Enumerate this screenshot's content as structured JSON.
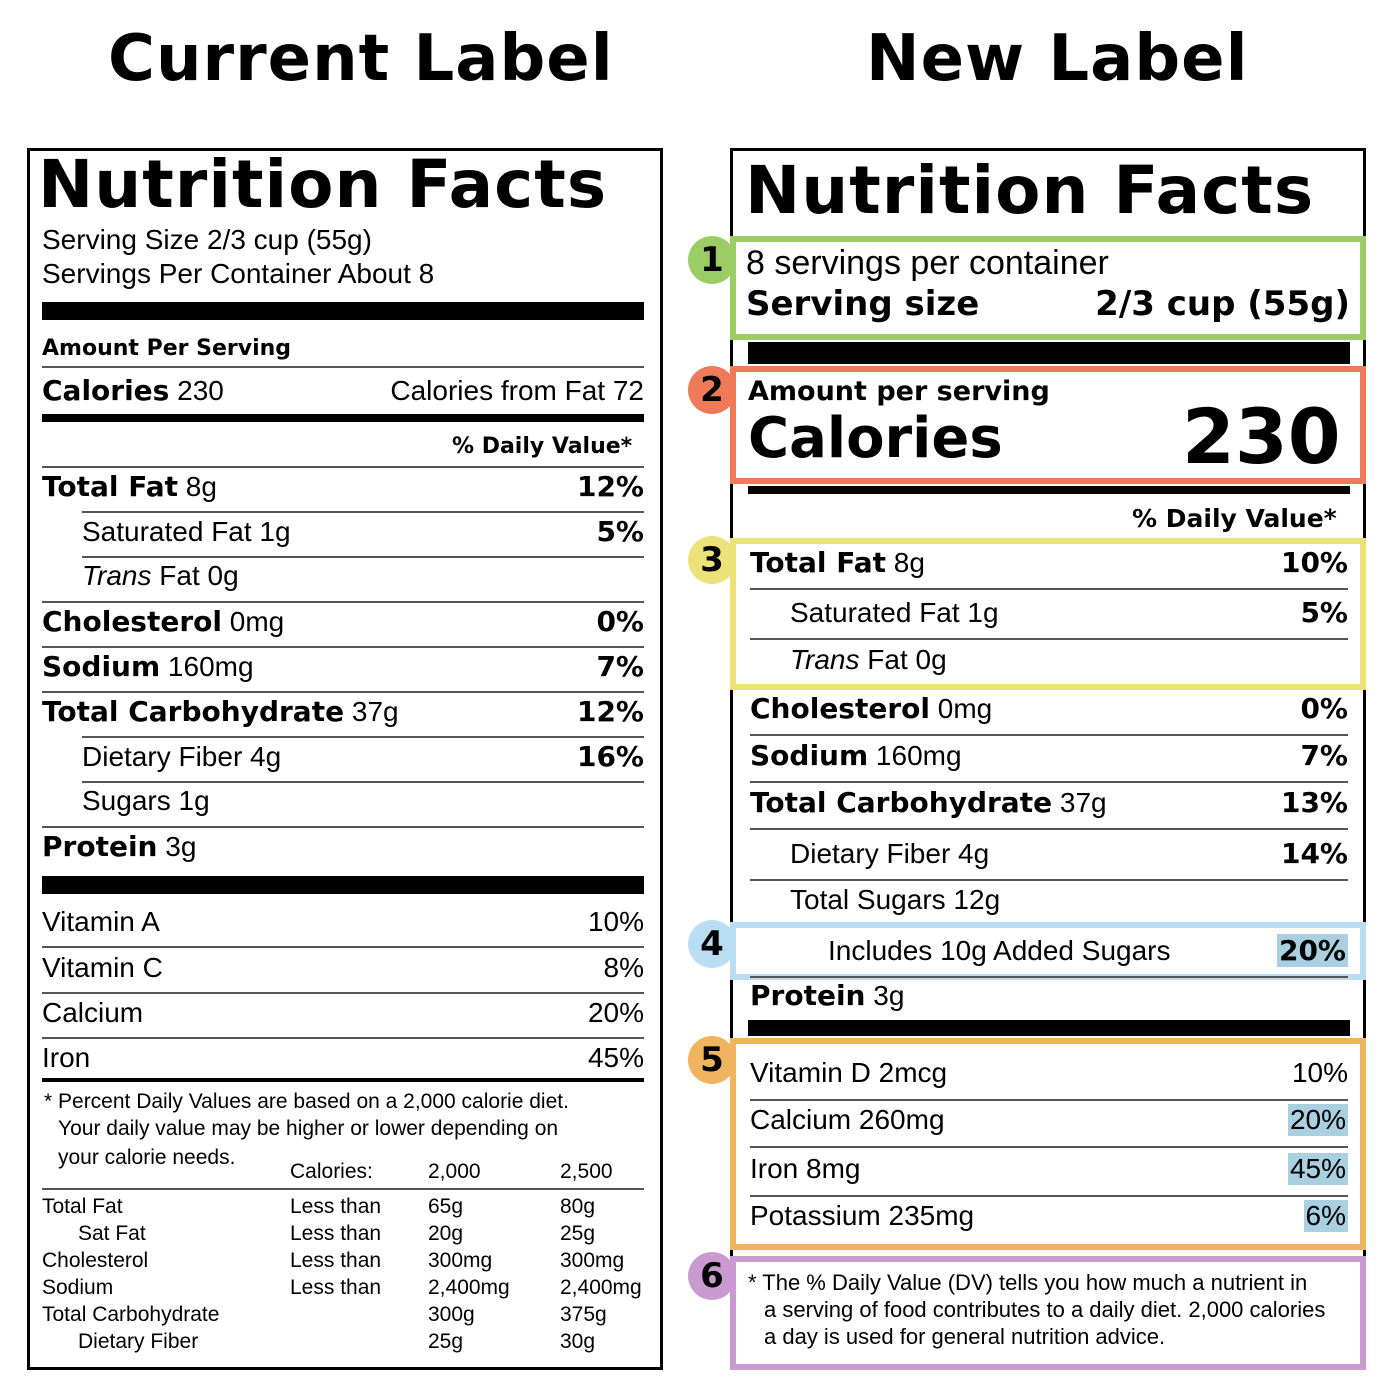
{
  "headings": {
    "current": "Current Label",
    "new": "New Label"
  },
  "current": {
    "title": "Nutrition Facts",
    "serving_size": "Serving Size 2/3 cup (55g)",
    "servings_per": "Servings Per Container About 8",
    "amount_per": "Amount Per Serving",
    "calories_label": "Calories",
    "calories_value": "230",
    "calories_fat": "Calories from Fat 72",
    "dv_header": "% Daily Value*",
    "nutrients": [
      {
        "key": "Total Fat",
        "amt": "8g",
        "pct": "12%"
      },
      {
        "key": "Saturated Fat",
        "amt": "1g",
        "pct": "5%"
      },
      {
        "italic": "Trans",
        "key": "Fat",
        "amt": "0g",
        "pct": ""
      },
      {
        "key": "Cholesterol",
        "amt": "0mg",
        "pct": "0%"
      },
      {
        "key": "Sodium",
        "amt": "160mg",
        "pct": "7%"
      },
      {
        "key": "Total Carbohydrate",
        "amt": "37g",
        "pct": "12%"
      },
      {
        "key": "Dietary Fiber",
        "amt": "4g",
        "pct": "16%"
      },
      {
        "key": "Sugars",
        "amt": "1g",
        "pct": ""
      },
      {
        "key": "Protein",
        "amt": "3g",
        "pct": ""
      }
    ],
    "vitamins": [
      {
        "name": "Vitamin A",
        "pct": "10%"
      },
      {
        "name": "Vitamin C",
        "pct": "8%"
      },
      {
        "name": "Calcium",
        "pct": "20%"
      },
      {
        "name": "Iron",
        "pct": "45%"
      }
    ],
    "footnote": [
      "* Percent Daily Values are based on a 2,000 calorie diet.",
      "Your daily value may be higher or lower depending on",
      "your calorie needs."
    ],
    "table_header": [
      "Calories:",
      "2,000",
      "2,500"
    ],
    "table_rows": [
      [
        "Total Fat",
        "Less than",
        "65g",
        "80g"
      ],
      [
        "Sat Fat",
        "Less than",
        "20g",
        "25g"
      ],
      [
        "Cholesterol",
        "Less than",
        "300mg",
        "300mg"
      ],
      [
        "Sodium",
        "Less than",
        "2,400mg",
        "2,400mg"
      ],
      [
        "Total Carbohydrate",
        "",
        "300g",
        "375g"
      ],
      [
        "Dietary Fiber",
        "",
        "25g",
        "30g"
      ]
    ]
  },
  "new_label": {
    "title": "Nutrition Facts",
    "servings_per": "8 servings per container",
    "serving_size_label": "Serving size",
    "serving_size_value": "2/3 cup (55g)",
    "amount_per": "Amount per serving",
    "calories_label": "Calories",
    "calories_value": "230",
    "dv_header": "% Daily Value*",
    "nutrients": [
      {
        "key": "Total Fat",
        "amt": "8g",
        "pct": "10%"
      },
      {
        "key": "Saturated Fat",
        "amt": "1g",
        "pct": "5%"
      },
      {
        "italic": "Trans",
        "key": "Fat",
        "amt": "0g",
        "pct": ""
      },
      {
        "key": "Cholesterol",
        "amt": "0mg",
        "pct": "0%"
      },
      {
        "key": "Sodium",
        "amt": "160mg",
        "pct": "7%"
      },
      {
        "key": "Total Carbohydrate",
        "amt": "37g",
        "pct": "13%"
      },
      {
        "key": "Dietary Fiber",
        "amt": "4g",
        "pct": "14%"
      },
      {
        "key": "Total Sugars",
        "amt": "12g",
        "pct": ""
      },
      {
        "key": "Includes 10g Added Sugars",
        "amt": "",
        "pct": "20%"
      },
      {
        "key": "Protein",
        "amt": "3g",
        "pct": ""
      }
    ],
    "minerals": [
      {
        "name": "Vitamin D 2mcg",
        "pct": "10%"
      },
      {
        "name": "Calcium 260mg",
        "pct": "20%"
      },
      {
        "name": "Iron 8mg",
        "pct": "45%"
      },
      {
        "name": "Potassium 235mg",
        "pct": "6%"
      }
    ],
    "footnote": [
      "* The % Daily Value (DV) tells you how much a nutrient in",
      "a serving of food contributes to a daily diet. 2,000 calories",
      "a day is used for general nutrition advice."
    ]
  },
  "callouts": [
    {
      "num": "1",
      "color": "#9ccc65"
    },
    {
      "num": "2",
      "color": "#ef7a5a"
    },
    {
      "num": "3",
      "color": "#ece27a"
    },
    {
      "num": "4",
      "color": "#b9def3"
    },
    {
      "num": "5",
      "color": "#f0b45f"
    },
    {
      "num": "6",
      "color": "#c99ad0"
    }
  ]
}
